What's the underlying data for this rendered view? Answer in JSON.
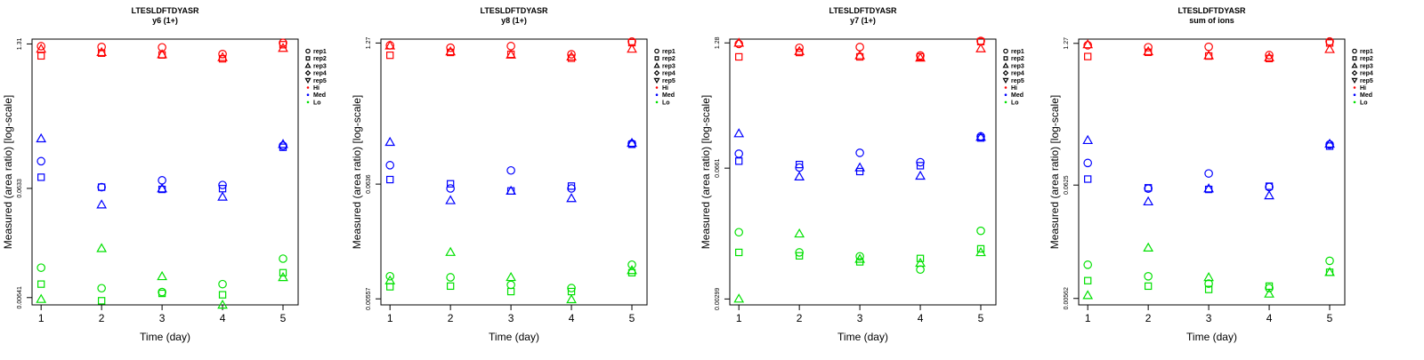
{
  "colors": {
    "Hi": "#ff0000",
    "Med": "#0000ff",
    "Lo": "#00e000",
    "axis": "#000000"
  },
  "legend": {
    "reps": [
      {
        "name": "rep1",
        "shape": "circle"
      },
      {
        "name": "rep2",
        "shape": "square"
      },
      {
        "name": "rep3",
        "shape": "triangle-up"
      },
      {
        "name": "rep4",
        "shape": "diamond"
      },
      {
        "name": "rep5",
        "shape": "triangle-down"
      }
    ],
    "levels": [
      {
        "name": "Hi",
        "color": "#ff0000"
      },
      {
        "name": "Med",
        "color": "#0000ff"
      },
      {
        "name": "Lo",
        "color": "#00e000"
      }
    ]
  },
  "chart_data": [
    {
      "type": "scatter",
      "title": "LTESLDFTDYASR",
      "subtitle": "y6 (1+)",
      "xlabel": "Time (day)",
      "ylabel": "Measured (area ratio) [log-scale]",
      "x_ticks": [
        "1",
        "2",
        "3",
        "4",
        "5"
      ],
      "xlim": [
        0.85,
        5.25
      ],
      "y_ticks": [
        {
          "value": 0.00641,
          "label": "0.00641"
        },
        {
          "value": 0.0633,
          "label": "0.0633"
        },
        {
          "value": 1.31,
          "label": "1.31"
        }
      ],
      "ylim": [
        0.0055,
        1.45
      ],
      "series": [
        {
          "level": "Hi",
          "rep": "rep1",
          "x": [
            1,
            2,
            3,
            4,
            5
          ],
          "y": [
            1.25,
            1.23,
            1.22,
            1.06,
            1.34
          ]
        },
        {
          "level": "Hi",
          "rep": "rep2",
          "x": [
            1,
            2,
            3,
            4,
            5
          ],
          "y": [
            1.02,
            1.08,
            1.04,
            0.96,
            1.29
          ]
        },
        {
          "level": "Hi",
          "rep": "rep3",
          "x": [
            1,
            2,
            3,
            4,
            5
          ],
          "y": [
            1.18,
            1.1,
            1.05,
            0.99,
            1.2
          ]
        },
        {
          "level": "Med",
          "rep": "rep1",
          "x": [
            1,
            2,
            3,
            4,
            5
          ],
          "y": [
            0.112,
            0.065,
            0.075,
            0.068,
            0.155
          ]
        },
        {
          "level": "Med",
          "rep": "rep2",
          "x": [
            1,
            2,
            3,
            4,
            5
          ],
          "y": [
            0.08,
            0.065,
            0.062,
            0.063,
            0.15
          ]
        },
        {
          "level": "Med",
          "rep": "rep3",
          "x": [
            1,
            2,
            3,
            4,
            5
          ],
          "y": [
            0.18,
            0.045,
            0.063,
            0.053,
            0.16
          ]
        },
        {
          "level": "Lo",
          "rep": "rep1",
          "x": [
            1,
            2,
            3,
            4,
            5
          ],
          "y": [
            0.012,
            0.0078,
            0.0072,
            0.0085,
            0.0145
          ]
        },
        {
          "level": "Lo",
          "rep": "rep2",
          "x": [
            1,
            2,
            3,
            4,
            5
          ],
          "y": [
            0.0085,
            0.006,
            0.007,
            0.0068,
            0.0108
          ]
        },
        {
          "level": "Lo",
          "rep": "rep3",
          "x": [
            1,
            2,
            3,
            4,
            5
          ],
          "y": [
            0.0062,
            0.018,
            0.01,
            0.0055,
            0.0098
          ]
        }
      ]
    },
    {
      "type": "scatter",
      "title": "LTESLDFTDYASR",
      "subtitle": "y8 (1+)",
      "xlabel": "Time (day)",
      "ylabel": "Measured (area ratio) [log-scale]",
      "x_ticks": [
        "1",
        "2",
        "3",
        "4",
        "5"
      ],
      "xlim": [
        0.85,
        5.25
      ],
      "y_ticks": [
        {
          "value": 0.00557,
          "label": "0.00557"
        },
        {
          "value": 0.0636,
          "label": "0.0636"
        },
        {
          "value": 1.27,
          "label": "1.27"
        }
      ],
      "ylim": [
        0.0049,
        1.38
      ],
      "series": [
        {
          "level": "Hi",
          "rep": "rep1",
          "x": [
            1,
            2,
            3,
            4,
            5
          ],
          "y": [
            1.21,
            1.15,
            1.19,
            1.0,
            1.31
          ]
        },
        {
          "level": "Hi",
          "rep": "rep2",
          "x": [
            1,
            2,
            3,
            4,
            5
          ],
          "y": [
            0.98,
            1.04,
            1.0,
            0.92,
            1.28
          ]
        },
        {
          "level": "Hi",
          "rep": "rep3",
          "x": [
            1,
            2,
            3,
            4,
            5
          ],
          "y": [
            1.2,
            1.06,
            0.99,
            0.95,
            1.12
          ]
        },
        {
          "level": "Med",
          "rep": "rep1",
          "x": [
            1,
            2,
            3,
            4,
            5
          ],
          "y": [
            0.095,
            0.058,
            0.085,
            0.058,
            0.15
          ]
        },
        {
          "level": "Med",
          "rep": "rep2",
          "x": [
            1,
            2,
            3,
            4,
            5
          ],
          "y": [
            0.07,
            0.064,
            0.055,
            0.061,
            0.148
          ]
        },
        {
          "level": "Med",
          "rep": "rep3",
          "x": [
            1,
            2,
            3,
            4,
            5
          ],
          "y": [
            0.155,
            0.045,
            0.055,
            0.047,
            0.152
          ]
        },
        {
          "level": "Lo",
          "rep": "rep1",
          "x": [
            1,
            2,
            3,
            4,
            5
          ],
          "y": [
            0.009,
            0.0088,
            0.0075,
            0.007,
            0.0115
          ]
        },
        {
          "level": "Lo",
          "rep": "rep2",
          "x": [
            1,
            2,
            3,
            4,
            5
          ],
          "y": [
            0.0072,
            0.0073,
            0.0065,
            0.0065,
            0.0097
          ]
        },
        {
          "level": "Lo",
          "rep": "rep3",
          "x": [
            1,
            2,
            3,
            4,
            5
          ],
          "y": [
            0.0082,
            0.015,
            0.0088,
            0.0055,
            0.0102
          ]
        }
      ]
    },
    {
      "type": "scatter",
      "title": "LTESLDFTDYASR",
      "subtitle": "y7 (1+)",
      "xlabel": "Time (day)",
      "ylabel": "Measured (area ratio) [log-scale]",
      "x_ticks": [
        "1",
        "2",
        "3",
        "4",
        "5"
      ],
      "xlim": [
        0.85,
        5.25
      ],
      "y_ticks": [
        {
          "value": 0.00299,
          "label": "0.00299"
        },
        {
          "value": 0.0661,
          "label": "0.0661"
        },
        {
          "value": 1.28,
          "label": "1.28"
        }
      ],
      "ylim": [
        0.0026,
        1.4
      ],
      "series": [
        {
          "level": "Hi",
          "rep": "rep1",
          "x": [
            1,
            2,
            3,
            4,
            5
          ],
          "y": [
            1.25,
            1.14,
            1.16,
            0.95,
            1.34
          ]
        },
        {
          "level": "Hi",
          "rep": "rep2",
          "x": [
            1,
            2,
            3,
            4,
            5
          ],
          "y": [
            0.92,
            1.02,
            0.92,
            0.92,
            1.32
          ]
        },
        {
          "level": "Hi",
          "rep": "rep3",
          "x": [
            1,
            2,
            3,
            4,
            5
          ],
          "y": [
            1.28,
            1.05,
            0.95,
            0.9,
            1.12
          ]
        },
        {
          "level": "Med",
          "rep": "rep1",
          "x": [
            1,
            2,
            3,
            4,
            5
          ],
          "y": [
            0.093,
            0.067,
            0.095,
            0.076,
            0.14
          ]
        },
        {
          "level": "Med",
          "rep": "rep2",
          "x": [
            1,
            2,
            3,
            4,
            5
          ],
          "y": [
            0.078,
            0.072,
            0.061,
            0.07,
            0.135
          ]
        },
        {
          "level": "Med",
          "rep": "rep3",
          "x": [
            1,
            2,
            3,
            4,
            5
          ],
          "y": [
            0.15,
            0.054,
            0.067,
            0.055,
            0.138
          ]
        },
        {
          "level": "Lo",
          "rep": "rep1",
          "x": [
            1,
            2,
            3,
            4,
            5
          ],
          "y": [
            0.0145,
            0.009,
            0.0082,
            0.006,
            0.015
          ]
        },
        {
          "level": "Lo",
          "rep": "rep2",
          "x": [
            1,
            2,
            3,
            4,
            5
          ],
          "y": [
            0.009,
            0.0083,
            0.0072,
            0.0078,
            0.0098
          ]
        },
        {
          "level": "Lo",
          "rep": "rep3",
          "x": [
            1,
            2,
            3,
            4,
            5
          ],
          "y": [
            0.003,
            0.014,
            0.0077,
            0.007,
            0.009
          ]
        }
      ]
    },
    {
      "type": "scatter",
      "title": "LTESLDFTDYASR",
      "subtitle": "sum of ions",
      "xlabel": "Time (day)",
      "ylabel": "Measured (area ratio) [log-scale]",
      "x_ticks": [
        "1",
        "2",
        "3",
        "4",
        "5"
      ],
      "xlim": [
        0.85,
        5.25
      ],
      "y_ticks": [
        {
          "value": 0.00562,
          "label": "0.00562"
        },
        {
          "value": 0.0625,
          "label": "0.0625"
        },
        {
          "value": 1.27,
          "label": "1.27"
        }
      ],
      "ylim": [
        0.0049,
        1.39
      ],
      "series": [
        {
          "level": "Hi",
          "rep": "rep1",
          "x": [
            1,
            2,
            3,
            4,
            5
          ],
          "y": [
            1.22,
            1.17,
            1.18,
            0.99,
            1.32
          ]
        },
        {
          "level": "Hi",
          "rep": "rep2",
          "x": [
            1,
            2,
            3,
            4,
            5
          ],
          "y": [
            0.96,
            1.05,
            0.97,
            0.92,
            1.28
          ]
        },
        {
          "level": "Hi",
          "rep": "rep3",
          "x": [
            1,
            2,
            3,
            4,
            5
          ],
          "y": [
            1.24,
            1.07,
            0.98,
            0.94,
            1.12
          ]
        },
        {
          "level": "Med",
          "rep": "rep1",
          "x": [
            1,
            2,
            3,
            4,
            5
          ],
          "y": [
            0.1,
            0.058,
            0.08,
            0.06,
            0.148
          ]
        },
        {
          "level": "Med",
          "rep": "rep2",
          "x": [
            1,
            2,
            3,
            4,
            5
          ],
          "y": [
            0.071,
            0.059,
            0.057,
            0.061,
            0.143
          ]
        },
        {
          "level": "Med",
          "rep": "rep3",
          "x": [
            1,
            2,
            3,
            4,
            5
          ],
          "y": [
            0.162,
            0.044,
            0.058,
            0.05,
            0.15
          ]
        },
        {
          "level": "Lo",
          "rep": "rep1",
          "x": [
            1,
            2,
            3,
            4,
            5
          ],
          "y": [
            0.0115,
            0.009,
            0.0077,
            0.007,
            0.0125
          ]
        },
        {
          "level": "Lo",
          "rep": "rep2",
          "x": [
            1,
            2,
            3,
            4,
            5
          ],
          "y": [
            0.0082,
            0.0073,
            0.0068,
            0.0073,
            0.0098
          ]
        },
        {
          "level": "Lo",
          "rep": "rep3",
          "x": [
            1,
            2,
            3,
            4,
            5
          ],
          "y": [
            0.006,
            0.0165,
            0.0088,
            0.0062,
            0.0098
          ]
        }
      ]
    }
  ]
}
